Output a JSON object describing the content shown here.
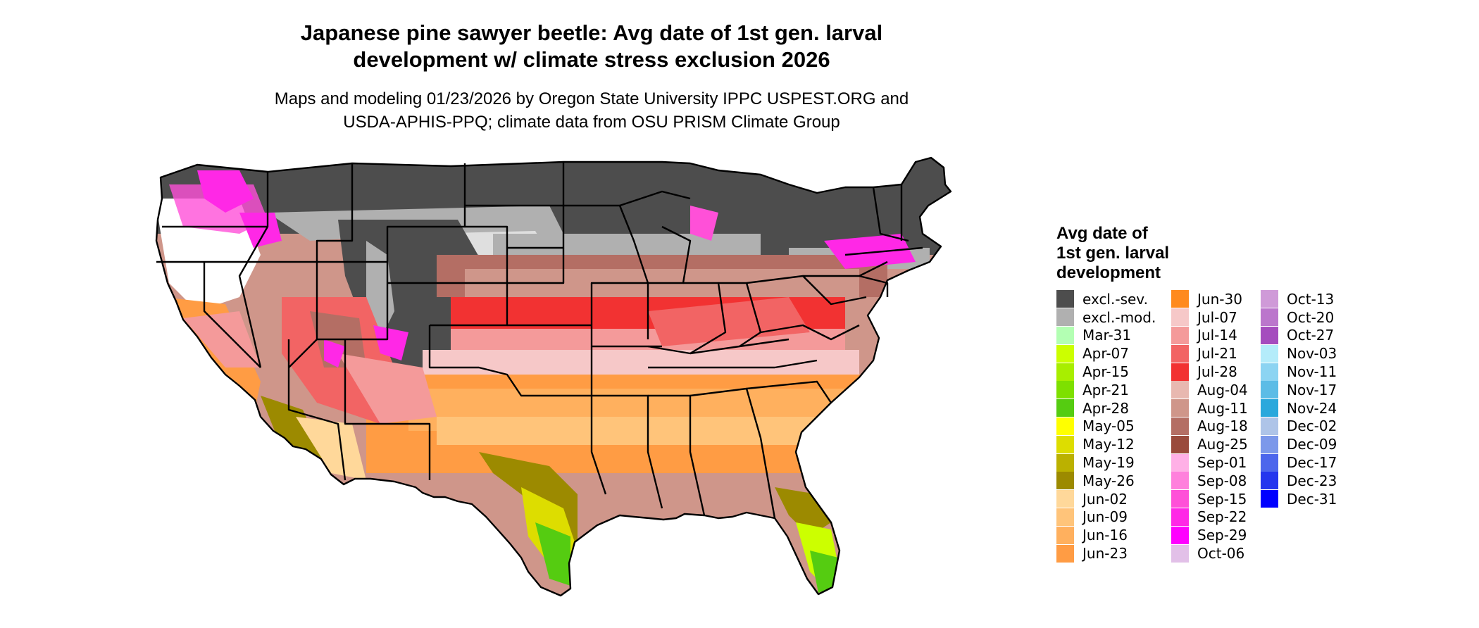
{
  "title": {
    "line1": "Japanese pine sawyer beetle: Avg date of 1st gen. larval",
    "line2": "development w/ climate stress exclusion 2026"
  },
  "subtitle": {
    "line1": "Maps and modeling 01/23/2026 by Oregon State University IPPC USPEST.ORG and",
    "line2": "USDA-APHIS-PPQ; climate data from OSU PRISM Climate Group"
  },
  "legend": {
    "title_lines": [
      "Avg date of",
      "1st gen. larval",
      "development"
    ],
    "columns": [
      [
        {
          "label": "excl.-sev.",
          "color": "#4d4d4d"
        },
        {
          "label": "excl.-mod.",
          "color": "#b0b0b0"
        },
        {
          "label": "Mar-31",
          "color": "#b3ffb3"
        },
        {
          "label": "Apr-07",
          "color": "#ccff00"
        },
        {
          "label": "Apr-15",
          "color": "#a8ee00"
        },
        {
          "label": "Apr-21",
          "color": "#7ee000"
        },
        {
          "label": "Apr-28",
          "color": "#55cc11"
        },
        {
          "label": "May-05",
          "color": "#ffff00"
        },
        {
          "label": "May-12",
          "color": "#dddd00"
        },
        {
          "label": "May-19",
          "color": "#bbb100"
        },
        {
          "label": "May-26",
          "color": "#9c8a00"
        },
        {
          "label": "Jun-02",
          "color": "#ffd89a"
        },
        {
          "label": "Jun-09",
          "color": "#ffc47a"
        },
        {
          "label": "Jun-16",
          "color": "#ffb05e"
        },
        {
          "label": "Jun-23",
          "color": "#ff9c44"
        }
      ],
      [
        {
          "label": "Jun-30",
          "color": "#ff8a1e"
        },
        {
          "label": "Jul-07",
          "color": "#f6c8c8"
        },
        {
          "label": "Jul-14",
          "color": "#f49a9a"
        },
        {
          "label": "Jul-21",
          "color": "#f26464"
        },
        {
          "label": "Jul-28",
          "color": "#f23232"
        },
        {
          "label": "Aug-04",
          "color": "#e8b8b0"
        },
        {
          "label": "Aug-11",
          "color": "#cf968a"
        },
        {
          "label": "Aug-18",
          "color": "#b46e64"
        },
        {
          "label": "Aug-25",
          "color": "#9a4a3c"
        },
        {
          "label": "Sep-01",
          "color": "#ffb0e6"
        },
        {
          "label": "Sep-08",
          "color": "#ff80dc"
        },
        {
          "label": "Sep-15",
          "color": "#ff50d8"
        },
        {
          "label": "Sep-22",
          "color": "#ff28e6"
        },
        {
          "label": "Sep-29",
          "color": "#ff00ff"
        },
        {
          "label": "Oct-06",
          "color": "#e2c0e8"
        }
      ],
      [
        {
          "label": "Oct-13",
          "color": "#cf9ad8"
        },
        {
          "label": "Oct-20",
          "color": "#bb76cc"
        },
        {
          "label": "Oct-27",
          "color": "#a54cbe"
        },
        {
          "label": "Nov-03",
          "color": "#b4ecfa"
        },
        {
          "label": "Nov-11",
          "color": "#8cd4f2"
        },
        {
          "label": "Nov-17",
          "color": "#5cbce6"
        },
        {
          "label": "Nov-24",
          "color": "#2aa8dc"
        },
        {
          "label": "Dec-02",
          "color": "#aec4e8"
        },
        {
          "label": "Dec-09",
          "color": "#7c98ea"
        },
        {
          "label": "Dec-17",
          "color": "#4c66ec"
        },
        {
          "label": "Dec-23",
          "color": "#2436ee"
        },
        {
          "label": "Dec-31",
          "color": "#0000ff"
        }
      ]
    ]
  }
}
